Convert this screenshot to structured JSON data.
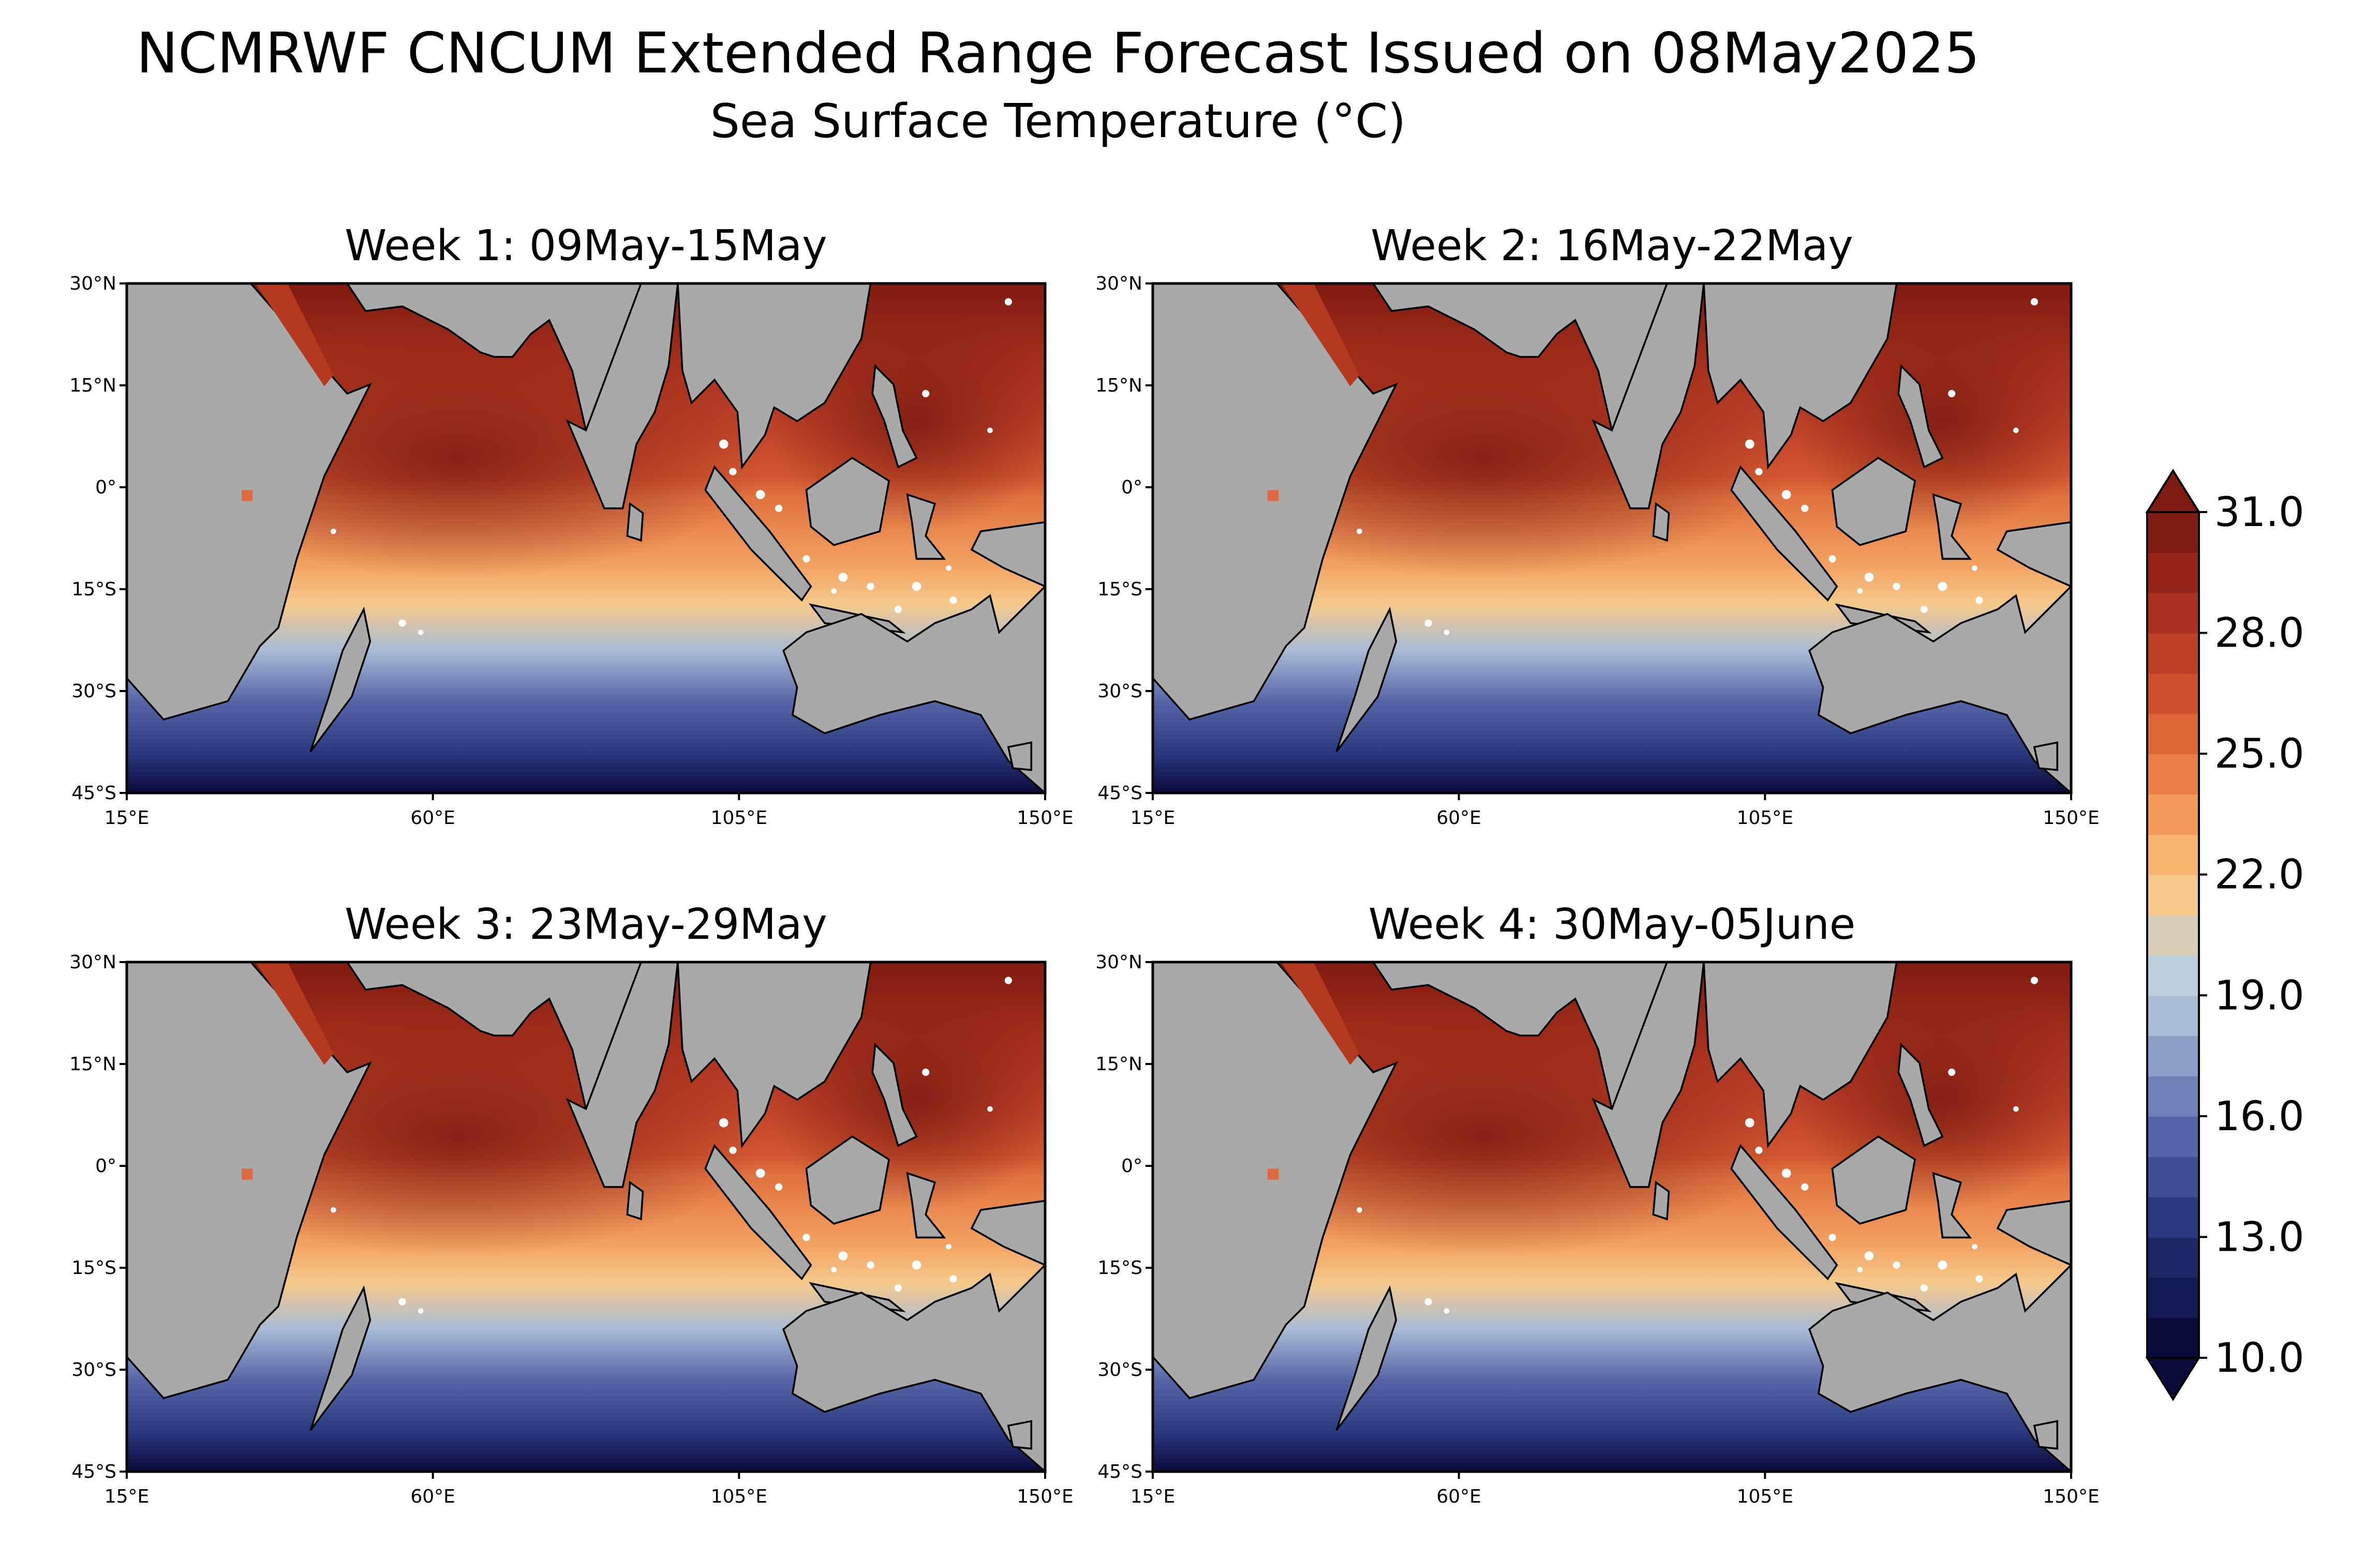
{
  "title": "NCMRWF CNCUM Extended Range Forecast Issued on 08May2025",
  "subtitle": "Sea Surface Temperature (°C)",
  "panels": [
    {
      "title": "Week 1: 09May-15May"
    },
    {
      "title": "Week 2: 16May-22May"
    },
    {
      "title": "Week 3: 23May-29May"
    },
    {
      "title": "Week 4: 30May-05June"
    }
  ],
  "axes": {
    "lat_labels": [
      "30°N",
      "15°N",
      "0°",
      "15°S",
      "30°S",
      "45°S"
    ],
    "lon_labels": [
      "15°E",
      "60°E",
      "105°E",
      "150°E"
    ],
    "lat_range": [
      -45,
      30
    ],
    "lon_range": [
      15,
      150
    ]
  },
  "colorbar": {
    "tick_labels": [
      "31.0",
      "28.0",
      "25.0",
      "22.0",
      "19.0",
      "16.0",
      "13.0",
      "10.0"
    ],
    "range": [
      10,
      31
    ],
    "colors": [
      "#0b0b3b",
      "#141a55",
      "#1d2869",
      "#2a3a80",
      "#3d4e94",
      "#5566a8",
      "#6e82b9",
      "#8aa0c9",
      "#a8bcd6",
      "#bdcfdc",
      "#d7ccb5",
      "#f6c98b",
      "#f8b36e",
      "#f39a58",
      "#ea7f45",
      "#de6636",
      "#cf512b",
      "#be4024",
      "#aa321e",
      "#952617",
      "#7f1b10"
    ]
  },
  "colors": {
    "land": "#a9a9a9",
    "coast": "#000000",
    "islands": "#ffffff"
  }
}
